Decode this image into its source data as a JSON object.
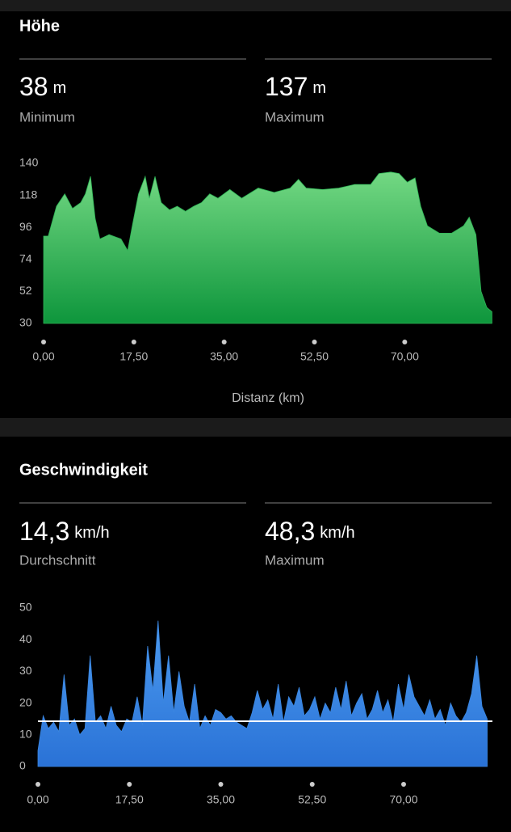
{
  "sections": [
    {
      "title": "Höhe",
      "stats": [
        {
          "value": "38",
          "unit": "m",
          "label": "Minimum"
        },
        {
          "value": "137",
          "unit": "m",
          "label": "Maximum"
        }
      ],
      "chart": {
        "type": "area",
        "color": "#2fb456",
        "x": [
          0,
          0.9,
          2.5,
          4.1,
          5.6,
          7.2,
          8.1,
          9.1,
          10.0,
          10.9,
          12.7,
          15.0,
          16.3,
          17.3,
          18.4,
          19.7,
          20.5,
          21.6,
          22.8,
          24.4,
          25.9,
          27.5,
          29.1,
          30.6,
          32.2,
          33.8,
          36.1,
          38.4,
          41.6,
          44.7,
          47.8,
          49.4,
          50.9,
          54.1,
          57.2,
          60.3,
          63.4,
          65.0,
          67.3,
          68.9,
          70.5,
          72.0,
          73.1,
          74.4,
          76.7,
          79.1,
          81.4,
          82.5,
          83.8,
          84.8,
          85.9,
          86.9
        ],
        "values": [
          90,
          90,
          110.5,
          119,
          109,
          113,
          119,
          131,
          102,
          88,
          91,
          88,
          80,
          99,
          119,
          131,
          116,
          131,
          113,
          108,
          110.5,
          107,
          110.5,
          113,
          119,
          116,
          122,
          116,
          123,
          120,
          123,
          129,
          123,
          122,
          123,
          125.5,
          125.5,
          133,
          134,
          133,
          127,
          130,
          110.5,
          97,
          92,
          92,
          97,
          103,
          91,
          52,
          41,
          38
        ],
        "xlim": [
          0,
          87
        ],
        "ylim": [
          30,
          140
        ],
        "yticks": [
          30,
          52,
          74,
          96,
          118,
          140
        ],
        "xticks": [
          {
            "value": 0,
            "label": "0,00"
          },
          {
            "value": 17.5,
            "label": "17,50"
          },
          {
            "value": 35,
            "label": "35,00"
          },
          {
            "value": 52.5,
            "label": "52,50"
          },
          {
            "value": 70,
            "label": "70,00"
          }
        ],
        "xlabel": "Distanz (km)"
      }
    },
    {
      "title": "Geschwindigkeit",
      "stats": [
        {
          "value": "14,3",
          "unit": "km/h",
          "label": "Durchschnitt"
        },
        {
          "value": "48,3",
          "unit": "km/h",
          "label": "Maximum"
        }
      ],
      "chart": {
        "type": "area",
        "color": "#3a86e0",
        "average": 14.3,
        "x": [
          0,
          1,
          2,
          3,
          4,
          5,
          6,
          7,
          8,
          9,
          10,
          11,
          12,
          13,
          14,
          15,
          16,
          17,
          18,
          19,
          20,
          21,
          22,
          23,
          24,
          25,
          26,
          27,
          28,
          29,
          30,
          31,
          32,
          33,
          34,
          35,
          36,
          37,
          38,
          39,
          40,
          41,
          42,
          43,
          44,
          45,
          46,
          47,
          48,
          49,
          50,
          51,
          52,
          53,
          54,
          55,
          56,
          57,
          58,
          59,
          60,
          61,
          62,
          63,
          64,
          65,
          66,
          67,
          68,
          69,
          70,
          71,
          72,
          73,
          74,
          75,
          76,
          77,
          78,
          79,
          80,
          81,
          82,
          83,
          84,
          85,
          86
        ],
        "values": [
          5,
          16,
          12,
          14,
          11,
          29,
          13,
          15,
          10,
          12,
          35,
          14,
          16,
          12,
          19,
          13,
          11,
          15,
          14,
          22,
          13,
          38,
          24,
          46,
          20,
          35,
          17,
          30,
          19,
          14,
          26,
          12,
          16,
          13,
          18,
          17,
          15,
          16,
          14,
          13,
          12,
          17,
          24,
          18,
          21,
          15,
          26,
          14,
          22,
          19,
          25,
          16,
          18,
          22,
          15,
          20,
          17,
          25,
          18,
          27,
          16,
          20,
          23,
          15,
          18,
          24,
          17,
          21,
          14,
          26,
          18,
          29,
          22,
          19,
          16,
          21,
          15,
          18,
          13,
          20,
          16,
          14,
          17,
          23,
          35,
          19,
          15
        ],
        "xlim": [
          0,
          87
        ],
        "ylim": [
          0,
          50
        ],
        "yticks": [
          0,
          10,
          20,
          30,
          40,
          50
        ],
        "xticks": [
          {
            "value": 0,
            "label": "0,00"
          },
          {
            "value": 17.5,
            "label": "17,50"
          },
          {
            "value": 35,
            "label": "35,00"
          },
          {
            "value": 52.5,
            "label": "52,50"
          },
          {
            "value": 70,
            "label": "70,00"
          }
        ]
      }
    }
  ]
}
